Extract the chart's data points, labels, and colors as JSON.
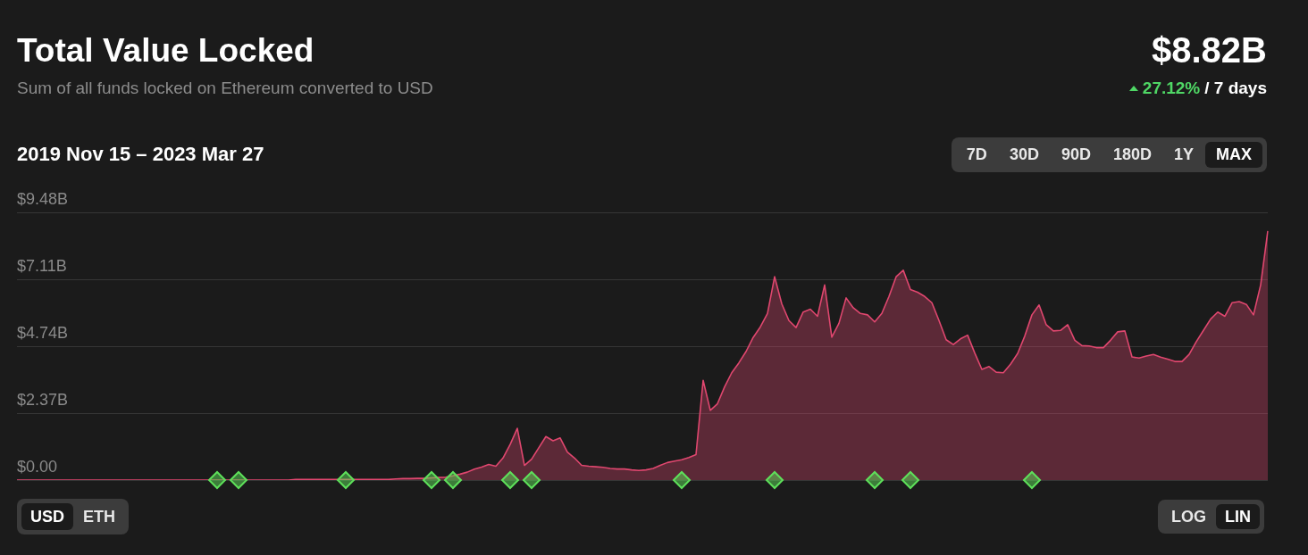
{
  "chart_data": {
    "type": "area",
    "title": "Total Value Locked",
    "subtitle": "Sum of all funds locked on Ethereum converted to USD",
    "annotations": [
      "2019 Nov 15 – 2023 Mar 27",
      "$8.82B",
      "27.12%",
      "/ 7 days",
      "7D",
      "30D",
      "90D",
      "180D",
      "1Y",
      "MAX",
      "USD",
      "ETH",
      "LOG",
      "LIN"
    ],
    "categories": [
      null,
      null,
      null,
      null,
      null,
      null,
      null,
      null,
      null,
      null,
      null,
      null,
      null,
      null,
      null,
      null,
      null,
      null,
      null,
      null,
      null,
      null,
      null,
      null,
      null,
      null,
      null,
      null,
      null,
      null,
      null,
      null,
      null,
      null,
      null,
      null,
      null,
      null,
      null,
      null,
      null,
      null,
      null,
      null,
      null,
      null,
      null,
      null,
      null,
      null,
      null,
      null,
      null,
      null,
      null,
      null,
      null,
      null,
      null,
      null,
      null,
      null,
      null,
      null,
      null,
      null,
      null,
      null,
      null,
      null,
      null,
      null,
      null,
      null,
      null,
      null,
      null,
      null,
      null,
      null,
      null,
      null,
      null,
      null,
      null,
      null,
      null,
      null,
      null,
      null,
      null,
      null,
      null,
      null,
      null,
      null,
      null,
      null,
      null,
      null,
      null,
      null,
      null,
      null,
      null,
      null,
      null,
      null,
      null,
      null,
      null,
      null,
      null,
      null,
      null,
      null,
      null,
      null,
      null,
      null,
      null,
      null,
      null,
      null,
      null,
      null,
      null,
      null,
      null,
      null,
      null,
      null,
      null,
      null,
      null,
      null,
      null,
      null,
      null,
      null,
      null,
      null,
      null,
      null,
      null,
      null,
      null,
      null,
      null,
      null,
      null,
      null,
      null,
      null,
      null,
      null,
      null,
      null,
      null,
      null,
      null,
      null,
      null,
      null,
      null,
      null,
      null,
      null,
      null,
      null,
      null,
      null,
      null,
      null,
      null,
      null
    ],
    "series": [
      {
        "color": "#e0476f",
        "values": [
          0,
          0,
          0,
          0,
          0,
          0,
          0,
          0,
          0,
          0,
          0,
          0,
          0,
          0,
          0,
          0,
          0,
          0,
          0,
          0,
          0,
          0,
          0,
          0,
          0,
          0,
          0,
          0,
          0,
          0,
          0,
          0,
          0,
          0,
          0,
          0,
          0,
          0,
          0,
          0.02,
          0.02,
          0.02,
          0.02,
          0.02,
          0.02,
          0.02,
          0.02,
          0.02,
          0.02,
          0.02,
          0.02,
          0.02,
          0.02,
          0.04,
          0.05,
          0.05,
          0.06,
          0.06,
          0.08,
          0.09,
          0.1,
          0.15,
          0.21,
          0.28,
          0.39,
          0.46,
          0.55,
          0.49,
          0.78,
          1.26,
          1.83,
          0.52,
          0.74,
          1.14,
          1.54,
          1.39,
          1.49,
          0.99,
          0.78,
          0.52,
          0.49,
          0.47,
          0.45,
          0.41,
          0.39,
          0.39,
          0.36,
          0.34,
          0.36,
          0.41,
          0.52,
          0.62,
          0.67,
          0.72,
          0.8,
          0.9,
          3.53,
          2.47,
          2.7,
          3.3,
          3.8,
          4.15,
          4.55,
          5.05,
          5.42,
          5.9,
          7.2,
          6.24,
          5.65,
          5.4,
          5.95,
          6.05,
          5.8,
          6.91,
          5.06,
          5.55,
          6.45,
          6.1,
          5.9,
          5.85,
          5.6,
          5.9,
          6.5,
          7.2,
          7.43,
          6.75,
          6.65,
          6.5,
          6.28,
          5.65,
          4.97,
          4.8,
          5.0,
          5.13,
          4.5,
          3.92,
          4.02,
          3.82,
          3.8,
          4.1,
          4.48,
          5.1,
          5.85,
          6.2,
          5.5,
          5.28,
          5.3,
          5.5,
          4.95,
          4.76,
          4.75,
          4.69,
          4.69,
          4.95,
          5.25,
          5.28,
          4.36,
          4.32,
          4.39,
          4.45,
          4.35,
          4.28,
          4.2,
          4.2,
          4.45,
          4.9,
          5.3,
          5.7,
          5.95,
          5.8,
          6.28,
          6.32,
          6.22,
          5.85,
          6.91,
          8.82
        ]
      },
      {
        "type": "scatter",
        "color": "#5ee05a",
        "marker": "diamond",
        "values": [
          null,
          null,
          null,
          null,
          null,
          null,
          null,
          null,
          null,
          null,
          null,
          null,
          null,
          null,
          null,
          null,
          null,
          null,
          null,
          null,
          null,
          null,
          null,
          null,
          null,
          null,
          null,
          null,
          0,
          null,
          null,
          0,
          null,
          null,
          null,
          null,
          null,
          null,
          null,
          null,
          null,
          null,
          null,
          null,
          null,
          null,
          0,
          null,
          null,
          null,
          null,
          null,
          null,
          null,
          null,
          null,
          null,
          null,
          0,
          null,
          null,
          0,
          null,
          null,
          null,
          null,
          null,
          null,
          null,
          0,
          null,
          null,
          0,
          null,
          null,
          null,
          null,
          null,
          null,
          null,
          null,
          null,
          null,
          null,
          null,
          null,
          null,
          null,
          null,
          null,
          null,
          null,
          null,
          0,
          null,
          null,
          null,
          null,
          null,
          null,
          null,
          null,
          null,
          null,
          null,
          null,
          0,
          null,
          null,
          null,
          null,
          null,
          null,
          null,
          null,
          null,
          null,
          null,
          null,
          null,
          0,
          null,
          null,
          null,
          null,
          0,
          null,
          null,
          null,
          null,
          null,
          null,
          null,
          null,
          null,
          null,
          null,
          null,
          null,
          null,
          null,
          null,
          0,
          null,
          null,
          null,
          null,
          null,
          null,
          null,
          null,
          null,
          null,
          null,
          null,
          null,
          null,
          null,
          null,
          null,
          null,
          null,
          null,
          null,
          null,
          null,
          null,
          null,
          null,
          null,
          null,
          null,
          null,
          null,
          null,
          null
        ]
      }
    ],
    "ylim": [
      0,
      9.48
    ],
    "yticks": [
      {
        "value": 0,
        "label": "$0.00"
      },
      {
        "value": 2.37,
        "label": "$2.37B"
      },
      {
        "value": 4.74,
        "label": "$4.74B"
      },
      {
        "value": 7.11,
        "label": "$7.11B"
      },
      {
        "value": 9.48,
        "label": "$9.48B"
      }
    ],
    "grid": "y",
    "legend": false,
    "tick_labels": "y"
  }
}
